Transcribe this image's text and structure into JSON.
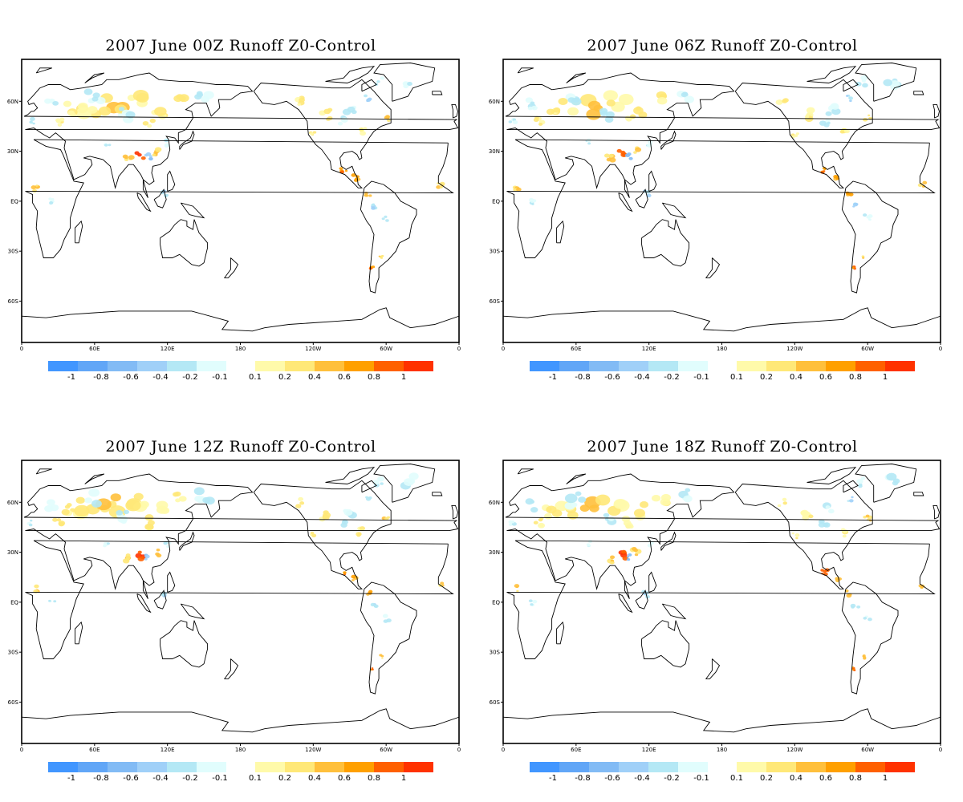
{
  "panels": [
    {
      "title": "2007 June 00Z Runoff Z0-Control"
    },
    {
      "title": "2007  June 06Z Runoff Z0-Control"
    },
    {
      "title": "2007  June 12Z Runoff Z0-Control"
    },
    {
      "title": "2007  June 18Z Runoff Z0-Control"
    }
  ],
  "lon_ticks": [
    "0",
    "60E",
    "120E",
    "180",
    "120W",
    "60W",
    "0"
  ],
  "lat_ticks": [
    "60N",
    "30N",
    "EQ",
    "30S",
    "60S"
  ],
  "colorbar": {
    "labels": [
      "-1",
      "-0.8",
      "-0.6",
      "-0.4",
      "-0.2",
      "-0.1",
      "0.1",
      "0.2",
      "0.4",
      "0.6",
      "0.8",
      "1"
    ],
    "negative_colors": [
      "#4196ff",
      "#61a6f7",
      "#82bbf5",
      "#a0d0f8",
      "#b4e8f5",
      "#e1fdfd"
    ],
    "positive_colors": [
      "#fffaaa",
      "#ffe878",
      "#ffc03c",
      "#ffa000",
      "#ff6000",
      "#ff3200"
    ]
  },
  "chart_data": {
    "type": "heatmap",
    "projection": "latitude-longitude, 0 to 360",
    "variable": "Runoff Z0-Control",
    "color_levels": [
      -1,
      -0.8,
      -0.6,
      -0.4,
      -0.2,
      -0.1,
      0.1,
      0.2,
      0.4,
      0.6,
      0.8,
      1
    ]
  }
}
